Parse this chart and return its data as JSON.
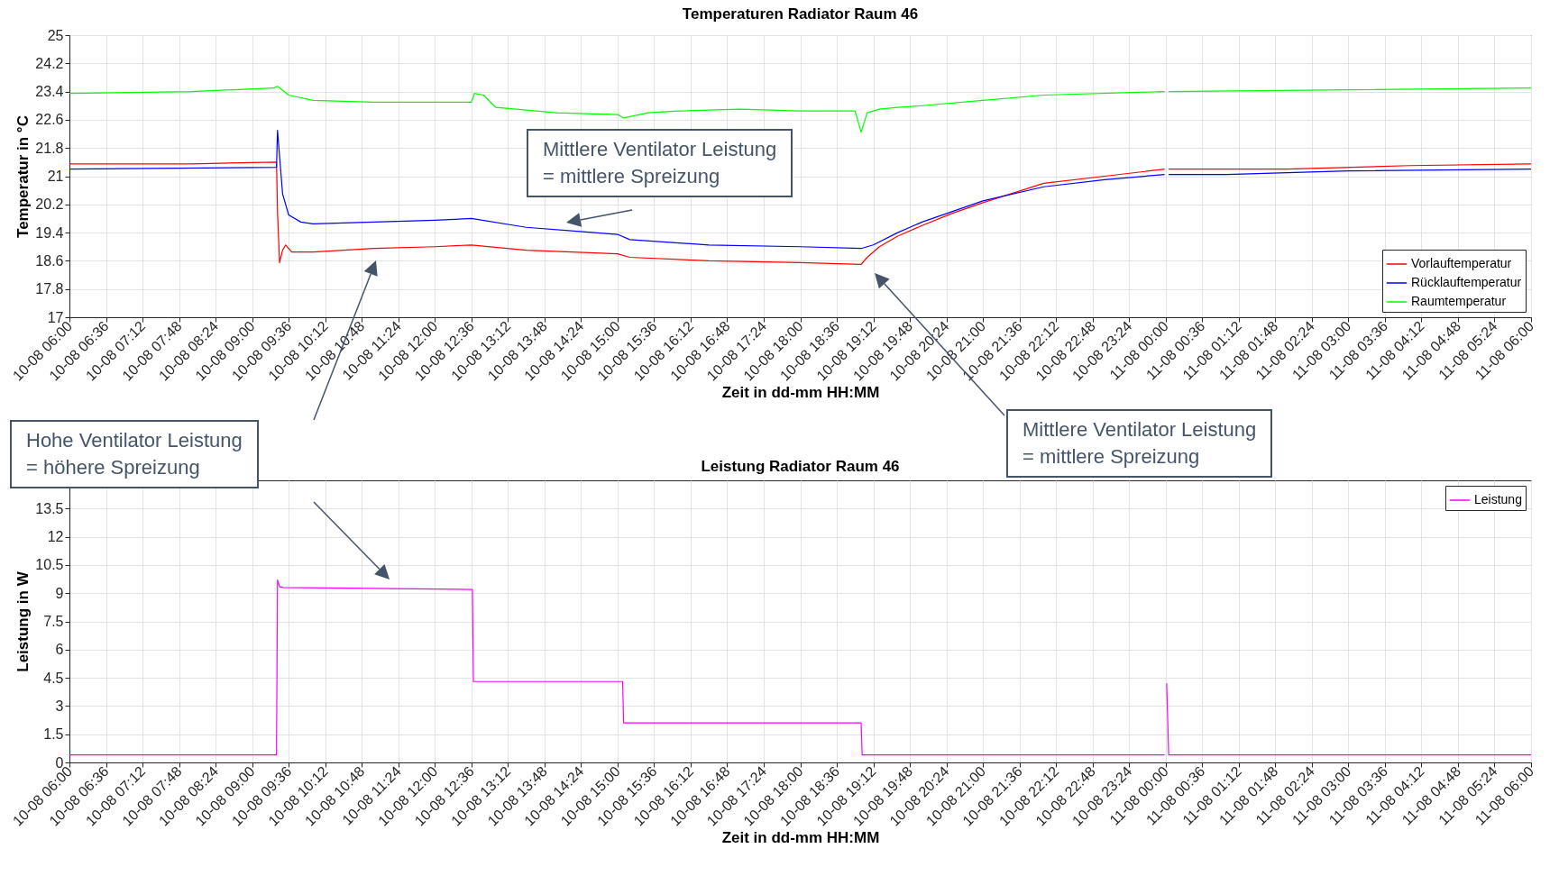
{
  "chart_data": [
    {
      "type": "line",
      "title": "Temperaturen Radiator Raum 46",
      "xlabel": "Zeit in dd-mm HH:MM",
      "ylabel": "Temperatur in °C",
      "xlim": [
        "--08-10T06:00",
        "--08-11T06:00"
      ],
      "xticks": [
        {
          "value": "--08-10T06:00",
          "label": "10-08 06:00"
        },
        {
          "value": "--08-10T06:36",
          "label": "10-08 06:36"
        },
        {
          "value": "--08-10T07:12",
          "label": "10-08 07:12"
        },
        {
          "value": "--08-10T07:48",
          "label": "10-08 07:48"
        },
        {
          "value": "--08-10T08:24",
          "label": "10-08 08:24"
        },
        {
          "value": "--08-10T09:00",
          "label": "10-08 09:00"
        },
        {
          "value": "--08-10T09:36",
          "label": "10-08 09:36"
        },
        {
          "value": "--08-10T10:12",
          "label": "10-08 10:12"
        },
        {
          "value": "--08-10T10:48",
          "label": "10-08 10:48"
        },
        {
          "value": "--08-10T11:24",
          "label": "10-08 11:24"
        },
        {
          "value": "--08-10T12:00",
          "label": "10-08 12:00"
        },
        {
          "value": "--08-10T12:36",
          "label": "10-08 12:36"
        },
        {
          "value": "--08-10T13:12",
          "label": "10-08 13:12"
        },
        {
          "value": "--08-10T13:48",
          "label": "10-08 13:48"
        },
        {
          "value": "--08-10T14:24",
          "label": "10-08 14:24"
        },
        {
          "value": "--08-10T15:00",
          "label": "10-08 15:00"
        },
        {
          "value": "--08-10T15:36",
          "label": "10-08 15:36"
        },
        {
          "value": "--08-10T16:12",
          "label": "10-08 16:12"
        },
        {
          "value": "--08-10T16:48",
          "label": "10-08 16:48"
        },
        {
          "value": "--08-10T17:24",
          "label": "10-08 17:24"
        },
        {
          "value": "--08-10T18:00",
          "label": "10-08 18:00"
        },
        {
          "value": "--08-10T18:36",
          "label": "10-08 18:36"
        },
        {
          "value": "--08-10T19:12",
          "label": "10-08 19:12"
        },
        {
          "value": "--08-10T19:48",
          "label": "10-08 19:48"
        },
        {
          "value": "--08-10T20:24",
          "label": "10-08 20:24"
        },
        {
          "value": "--08-10T21:00",
          "label": "10-08 21:00"
        },
        {
          "value": "--08-10T21:36",
          "label": "10-08 21:36"
        },
        {
          "value": "--08-10T22:12",
          "label": "10-08 22:12"
        },
        {
          "value": "--08-10T22:48",
          "label": "10-08 22:48"
        },
        {
          "value": "--08-10T23:24",
          "label": "10-08 23:24"
        },
        {
          "value": "--08-11T00:00",
          "label": "11-08 00:00"
        },
        {
          "value": "--08-11T00:36",
          "label": "11-08 00:36"
        },
        {
          "value": "--08-11T01:12",
          "label": "11-08 01:12"
        },
        {
          "value": "--08-11T01:48",
          "label": "11-08 01:48"
        },
        {
          "value": "--08-11T02:24",
          "label": "11-08 02:24"
        },
        {
          "value": "--08-11T03:00",
          "label": "11-08 03:00"
        },
        {
          "value": "--08-11T03:36",
          "label": "11-08 03:36"
        },
        {
          "value": "--08-11T04:12",
          "label": "11-08 04:12"
        },
        {
          "value": "--08-11T04:48",
          "label": "11-08 04:48"
        },
        {
          "value": "--08-11T05:24",
          "label": "11-08 05:24"
        },
        {
          "value": "--08-11T06:00",
          "label": "11-08 06:00"
        }
      ],
      "ylim": [
        17,
        25
      ],
      "yticks": [
        17,
        17.8,
        18.6,
        19.4,
        20.2,
        21,
        21.8,
        22.6,
        23.4,
        24.2,
        25
      ],
      "grid": true,
      "legend": "bottom right",
      "annotations": [
        "Mittlere Ventilator Leistung\n= mittlere Spreizung",
        "Mittlere Ventilator Leistung\n= mittlere Spreizung"
      ],
      "series": [
        {
          "name": "Vorlauftemperatur",
          "color": "#ff0000",
          "x": [
            "--08-10T06:00",
            "--08-10T08:00",
            "--08-10T09:24",
            "--08-10T09:25",
            "--08-10T09:27",
            "--08-10T09:30",
            "--08-10T09:33",
            "--08-10T09:39",
            "--08-10T10:00",
            "--08-10T11:00",
            "--08-10T12:00",
            "--08-10T12:36",
            "--08-10T13:30",
            "--08-10T15:00",
            "--08-10T15:12",
            "--08-10T16:30",
            "--08-10T18:00",
            "--08-10T19:00",
            "--08-10T19:06",
            "--08-10T19:18",
            "--08-10T19:36",
            "--08-10T20:00",
            "--08-10T20:30",
            "--08-10T21:00",
            "--08-10T22:00",
            "--08-10T23:00",
            "--08-10T23:59",
            "--08-11T00:01",
            "--08-11T00:03",
            "--08-11T02:00",
            "--08-11T04:00",
            "--08-11T06:00"
          ],
          "values": [
            21.35,
            21.35,
            21.4,
            20.0,
            18.55,
            18.9,
            19.05,
            18.85,
            18.85,
            18.95,
            19.0,
            19.05,
            18.9,
            18.8,
            18.7,
            18.6,
            18.55,
            18.5,
            18.7,
            19.0,
            19.3,
            19.6,
            19.95,
            20.25,
            20.8,
            21.0,
            21.2,
            null,
            21.2,
            21.2,
            21.3,
            21.35
          ]
        },
        {
          "name": "Rücklauftemperatur",
          "color": "#0000ff",
          "x": [
            "--08-10T06:00",
            "--08-10T09:24",
            "--08-10T09:25",
            "--08-10T09:30",
            "--08-10T09:36",
            "--08-10T09:48",
            "--08-10T10:00",
            "--08-10T11:00",
            "--08-10T12:00",
            "--08-10T12:36",
            "--08-10T13:30",
            "--08-10T15:00",
            "--08-10T15:12",
            "--08-10T16:30",
            "--08-10T18:00",
            "--08-10T19:00",
            "--08-10T19:12",
            "--08-10T19:36",
            "--08-10T20:00",
            "--08-10T21:00",
            "--08-10T22:00",
            "--08-10T23:00",
            "--08-10T23:59",
            "--08-11T00:01",
            "--08-11T00:03",
            "--08-11T01:00",
            "--08-11T03:00",
            "--08-11T06:00"
          ],
          "values": [
            21.2,
            21.25,
            22.3,
            20.5,
            19.9,
            19.7,
            19.65,
            19.7,
            19.75,
            19.8,
            19.55,
            19.35,
            19.2,
            19.05,
            19.0,
            18.95,
            19.05,
            19.4,
            19.7,
            20.3,
            20.7,
            20.9,
            21.05,
            null,
            21.05,
            21.05,
            21.15,
            21.2
          ]
        },
        {
          "name": "Raumtemperatur",
          "color": "#00ff00",
          "x": [
            "--08-10T06:00",
            "--08-10T08:00",
            "--08-10T09:21",
            "--08-10T09:25",
            "--08-10T09:36",
            "--08-10T10:00",
            "--08-10T11:00",
            "--08-10T12:00",
            "--08-10T12:36",
            "--08-10T12:39",
            "--08-10T12:48",
            "--08-10T13:00",
            "--08-10T14:00",
            "--08-10T15:00",
            "--08-10T15:06",
            "--08-10T15:30",
            "--08-10T16:00",
            "--08-10T17:00",
            "--08-10T18:00",
            "--08-10T18:54",
            "--08-10T19:00",
            "--08-10T19:06",
            "--08-10T19:18",
            "--08-10T19:36",
            "--08-10T20:00",
            "--08-10T21:00",
            "--08-10T22:00",
            "--08-10T23:59",
            "--08-11T00:01",
            "--08-11T00:03",
            "--08-11T03:00",
            "--08-11T06:00"
          ],
          "values": [
            23.35,
            23.4,
            23.5,
            23.55,
            23.3,
            23.15,
            23.1,
            23.1,
            23.1,
            23.35,
            23.3,
            22.95,
            22.8,
            22.75,
            22.65,
            22.8,
            22.85,
            22.9,
            22.85,
            22.85,
            22.25,
            22.8,
            22.9,
            22.95,
            23.0,
            23.15,
            23.3,
            23.4,
            null,
            23.4,
            23.45,
            23.5
          ]
        }
      ]
    },
    {
      "type": "line",
      "title": "Leistung Radiator Raum 46",
      "xlabel": "Zeit in dd-mm HH:MM",
      "ylabel": "Leistung in W",
      "xlim": [
        "--08-10T06:00",
        "--08-11T06:00"
      ],
      "xticks": [
        {
          "value": "--08-10T06:00",
          "label": "10-08 06:00"
        },
        {
          "value": "--08-10T06:36",
          "label": "10-08 06:36"
        },
        {
          "value": "--08-10T07:12",
          "label": "10-08 07:12"
        },
        {
          "value": "--08-10T07:48",
          "label": "10-08 07:48"
        },
        {
          "value": "--08-10T08:24",
          "label": "10-08 08:24"
        },
        {
          "value": "--08-10T09:00",
          "label": "10-08 09:00"
        },
        {
          "value": "--08-10T09:36",
          "label": "10-08 09:36"
        },
        {
          "value": "--08-10T10:12",
          "label": "10-08 10:12"
        },
        {
          "value": "--08-10T10:48",
          "label": "10-08 10:48"
        },
        {
          "value": "--08-10T11:24",
          "label": "10-08 11:24"
        },
        {
          "value": "--08-10T12:00",
          "label": "10-08 12:00"
        },
        {
          "value": "--08-10T12:36",
          "label": "10-08 12:36"
        },
        {
          "value": "--08-10T13:12",
          "label": "10-08 13:12"
        },
        {
          "value": "--08-10T13:48",
          "label": "10-08 13:48"
        },
        {
          "value": "--08-10T14:24",
          "label": "10-08 14:24"
        },
        {
          "value": "--08-10T15:00",
          "label": "10-08 15:00"
        },
        {
          "value": "--08-10T15:36",
          "label": "10-08 15:36"
        },
        {
          "value": "--08-10T16:12",
          "label": "10-08 16:12"
        },
        {
          "value": "--08-10T16:48",
          "label": "10-08 16:48"
        },
        {
          "value": "--08-10T17:24",
          "label": "10-08 17:24"
        },
        {
          "value": "--08-10T18:00",
          "label": "10-08 18:00"
        },
        {
          "value": "--08-10T18:36",
          "label": "10-08 18:36"
        },
        {
          "value": "--08-10T19:12",
          "label": "10-08 19:12"
        },
        {
          "value": "--08-10T19:48",
          "label": "10-08 19:48"
        },
        {
          "value": "--08-10T20:24",
          "label": "10-08 20:24"
        },
        {
          "value": "--08-10T21:00",
          "label": "10-08 21:00"
        },
        {
          "value": "--08-10T21:36",
          "label": "10-08 21:36"
        },
        {
          "value": "--08-10T22:12",
          "label": "10-08 22:12"
        },
        {
          "value": "--08-10T22:48",
          "label": "10-08 22:48"
        },
        {
          "value": "--08-10T23:24",
          "label": "10-08 23:24"
        },
        {
          "value": "--08-11T00:00",
          "label": "11-08 00:00"
        },
        {
          "value": "--08-11T00:36",
          "label": "11-08 00:36"
        },
        {
          "value": "--08-11T01:12",
          "label": "11-08 01:12"
        },
        {
          "value": "--08-11T01:48",
          "label": "11-08 01:48"
        },
        {
          "value": "--08-11T02:24",
          "label": "11-08 02:24"
        },
        {
          "value": "--08-11T03:00",
          "label": "11-08 03:00"
        },
        {
          "value": "--08-11T03:36",
          "label": "11-08 03:36"
        },
        {
          "value": "--08-11T04:12",
          "label": "11-08 04:12"
        },
        {
          "value": "--08-11T04:48",
          "label": "11-08 04:48"
        },
        {
          "value": "--08-11T05:24",
          "label": "11-08 05:24"
        },
        {
          "value": "--08-11T06:00",
          "label": "11-08 06:00"
        }
      ],
      "ylim": [
        0,
        15
      ],
      "yticks": [
        0,
        1.5,
        3,
        4.5,
        6,
        7.5,
        9,
        10.5,
        12,
        13.5
      ],
      "grid": true,
      "legend": "top right",
      "annotations": [
        "Hohe Ventilator Leistung\n= höhere Spreizung"
      ],
      "series": [
        {
          "name": "Leistung",
          "color": "#ff00ff",
          "x": [
            "--08-10T06:00",
            "--08-10T09:24",
            "--08-10T09:25",
            "--08-10T09:27",
            "--08-10T09:30",
            "--08-10T12:37",
            "--08-10T12:38",
            "--08-10T15:05",
            "--08-10T15:06",
            "--08-10T19:00",
            "--08-10T19:01",
            "--08-10T23:59",
            "--08-11T00:00",
            "--08-11T00:01",
            "--08-11T00:03",
            "--08-11T06:00"
          ],
          "values": [
            0.4,
            0.4,
            9.7,
            9.35,
            9.3,
            9.2,
            4.3,
            4.3,
            2.1,
            2.1,
            0.4,
            0.4,
            null,
            4.2,
            0.4,
            0.4
          ]
        }
      ]
    }
  ]
}
